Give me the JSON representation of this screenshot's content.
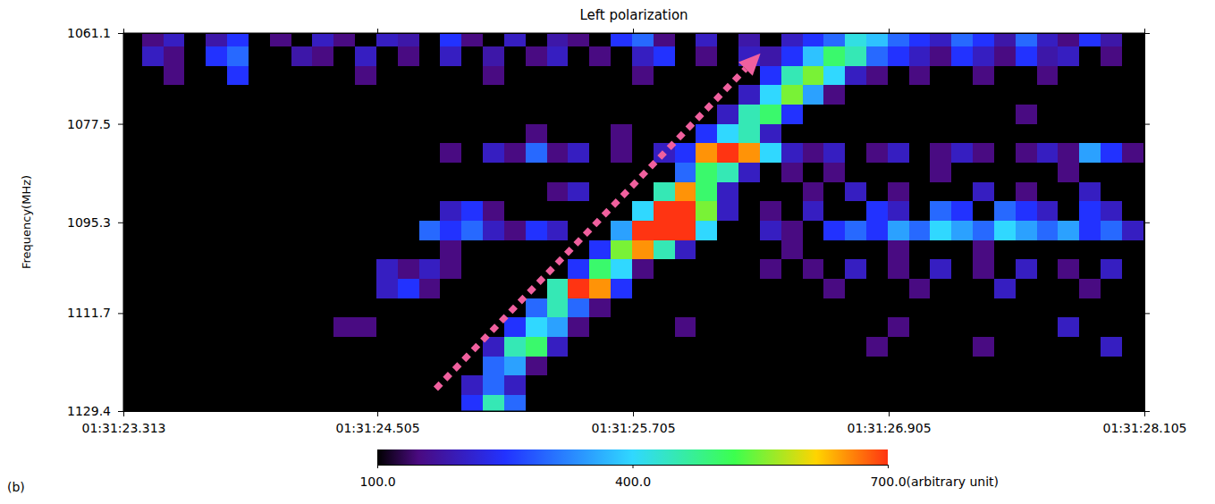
{
  "chart_data": {
    "type": "heatmap",
    "title": "Left polarization",
    "y_label": "Frequency(MHz)",
    "panel_label": "(b)",
    "xlim": [
      23.313,
      28.105
    ],
    "xticks": [
      {
        "value": 23.313,
        "label": "01:31:23.313"
      },
      {
        "value": 24.505,
        "label": "01:31:24.505"
      },
      {
        "value": 25.705,
        "label": "01:31:25.705"
      },
      {
        "value": 26.905,
        "label": "01:31:26.905"
      },
      {
        "value": 28.105,
        "label": "01:31:28.105"
      }
    ],
    "ylim": [
      1129.4,
      1061.1
    ],
    "yticks": [
      1061.1,
      1077.5,
      1095.3,
      1111.7,
      1129.4
    ],
    "x_edges": [
      23.3,
      23.4,
      23.5,
      23.6,
      23.7,
      23.8,
      23.9,
      24.0,
      24.1,
      24.2,
      24.3,
      24.4,
      24.5,
      24.6,
      24.7,
      24.8,
      24.9,
      25.0,
      25.1,
      25.2,
      25.3,
      25.4,
      25.5,
      25.6,
      25.7,
      25.8,
      25.9,
      26.0,
      26.1,
      26.2,
      26.3,
      26.4,
      26.5,
      26.6,
      26.7,
      26.8,
      26.9,
      27.0,
      27.1,
      27.2,
      27.3,
      27.4,
      27.5,
      27.6,
      27.7,
      27.8,
      27.9,
      28.0,
      28.1
    ],
    "y_edges": [
      1060,
      1063.5,
      1067,
      1070.5,
      1074,
      1077.5,
      1081,
      1084.5,
      1088,
      1091.5,
      1095,
      1098.5,
      1102,
      1105.5,
      1109,
      1112.5,
      1116,
      1119.5,
      1123,
      1126.5,
      1130
    ],
    "z": [
      [
        0,
        150,
        200,
        0,
        180,
        250,
        0,
        150,
        0,
        200,
        150,
        0,
        200,
        180,
        0,
        250,
        150,
        0,
        200,
        0,
        180,
        150,
        0,
        250,
        300,
        150,
        0,
        200,
        0,
        180,
        0,
        200,
        250,
        300,
        420,
        380,
        300,
        250,
        200,
        300,
        250,
        180,
        300,
        200,
        150,
        250,
        180,
        0
      ],
      [
        0,
        200,
        150,
        0,
        250,
        300,
        0,
        0,
        180,
        150,
        0,
        200,
        0,
        150,
        0,
        200,
        0,
        180,
        0,
        150,
        200,
        0,
        150,
        0,
        200,
        250,
        0,
        150,
        0,
        200,
        180,
        250,
        380,
        500,
        450,
        300,
        250,
        200,
        150,
        250,
        200,
        150,
        250,
        180,
        200,
        0,
        150,
        0
      ],
      [
        0,
        0,
        150,
        0,
        0,
        250,
        0,
        0,
        0,
        0,
        0,
        150,
        0,
        0,
        0,
        0,
        0,
        150,
        0,
        0,
        0,
        0,
        0,
        0,
        150,
        0,
        0,
        0,
        0,
        0,
        250,
        450,
        550,
        400,
        200,
        150,
        0,
        150,
        0,
        0,
        150,
        0,
        0,
        150,
        0,
        0,
        0,
        0
      ],
      [
        0,
        0,
        0,
        0,
        0,
        0,
        0,
        0,
        0,
        0,
        0,
        0,
        0,
        0,
        0,
        0,
        0,
        0,
        0,
        0,
        0,
        0,
        0,
        0,
        0,
        0,
        0,
        0,
        0,
        200,
        400,
        550,
        350,
        150,
        0,
        0,
        0,
        0,
        0,
        0,
        0,
        0,
        0,
        0,
        0,
        0,
        0,
        0
      ],
      [
        0,
        0,
        0,
        0,
        0,
        0,
        0,
        0,
        0,
        0,
        0,
        0,
        0,
        0,
        0,
        0,
        0,
        0,
        0,
        0,
        0,
        0,
        0,
        0,
        0,
        0,
        0,
        0,
        200,
        450,
        500,
        250,
        0,
        0,
        0,
        0,
        0,
        0,
        0,
        0,
        0,
        0,
        150,
        0,
        0,
        0,
        0,
        0
      ],
      [
        0,
        0,
        0,
        0,
        0,
        0,
        0,
        0,
        0,
        0,
        0,
        0,
        0,
        0,
        0,
        0,
        0,
        0,
        0,
        150,
        0,
        0,
        0,
        150,
        0,
        0,
        0,
        250,
        400,
        450,
        200,
        0,
        0,
        0,
        0,
        0,
        0,
        0,
        0,
        0,
        0,
        0,
        0,
        0,
        0,
        0,
        0,
        0
      ],
      [
        0,
        0,
        0,
        0,
        0,
        0,
        0,
        0,
        0,
        0,
        0,
        0,
        0,
        0,
        0,
        150,
        0,
        200,
        150,
        300,
        150,
        200,
        0,
        150,
        0,
        200,
        250,
        650,
        700,
        650,
        400,
        200,
        150,
        200,
        0,
        150,
        200,
        0,
        150,
        200,
        150,
        0,
        150,
        200,
        150,
        350,
        250,
        150
      ],
      [
        0,
        0,
        0,
        0,
        0,
        0,
        0,
        0,
        0,
        0,
        0,
        0,
        0,
        0,
        0,
        0,
        0,
        0,
        0,
        0,
        0,
        0,
        0,
        0,
        0,
        0,
        300,
        500,
        450,
        200,
        0,
        150,
        0,
        150,
        0,
        0,
        0,
        0,
        150,
        0,
        0,
        0,
        0,
        0,
        150,
        0,
        0,
        0
      ],
      [
        0,
        0,
        0,
        0,
        0,
        0,
        0,
        0,
        0,
        0,
        0,
        0,
        0,
        0,
        0,
        0,
        0,
        0,
        0,
        0,
        150,
        200,
        0,
        0,
        0,
        450,
        650,
        500,
        200,
        0,
        0,
        0,
        150,
        0,
        200,
        0,
        150,
        0,
        0,
        0,
        200,
        0,
        150,
        0,
        0,
        200,
        0,
        0
      ],
      [
        0,
        0,
        0,
        0,
        0,
        0,
        0,
        0,
        0,
        0,
        0,
        0,
        0,
        0,
        0,
        200,
        250,
        150,
        0,
        0,
        0,
        0,
        0,
        0,
        400,
        700,
        700,
        550,
        200,
        0,
        150,
        0,
        200,
        0,
        0,
        250,
        200,
        0,
        300,
        250,
        0,
        300,
        250,
        200,
        0,
        250,
        200,
        0
      ],
      [
        0,
        0,
        0,
        0,
        0,
        0,
        0,
        0,
        0,
        0,
        0,
        0,
        0,
        0,
        300,
        250,
        300,
        200,
        150,
        250,
        200,
        0,
        0,
        350,
        700,
        700,
        700,
        400,
        0,
        0,
        200,
        150,
        0,
        250,
        300,
        250,
        350,
        300,
        400,
        350,
        300,
        400,
        350,
        300,
        350,
        250,
        300,
        200
      ],
      [
        0,
        0,
        0,
        0,
        0,
        0,
        0,
        0,
        0,
        0,
        0,
        0,
        0,
        0,
        0,
        150,
        0,
        0,
        0,
        0,
        0,
        0,
        250,
        550,
        650,
        450,
        200,
        0,
        0,
        0,
        0,
        150,
        0,
        0,
        0,
        0,
        150,
        0,
        0,
        0,
        150,
        0,
        0,
        0,
        0,
        0,
        0,
        0
      ],
      [
        0,
        0,
        0,
        0,
        0,
        0,
        0,
        0,
        0,
        0,
        0,
        0,
        200,
        150,
        200,
        150,
        0,
        0,
        0,
        0,
        0,
        250,
        500,
        400,
        150,
        0,
        0,
        0,
        0,
        0,
        150,
        0,
        150,
        0,
        200,
        0,
        150,
        0,
        200,
        0,
        150,
        0,
        200,
        0,
        150,
        0,
        200,
        0
      ],
      [
        0,
        0,
        0,
        0,
        0,
        0,
        0,
        0,
        0,
        0,
        0,
        0,
        200,
        250,
        150,
        0,
        0,
        0,
        0,
        0,
        450,
        700,
        650,
        250,
        0,
        0,
        0,
        0,
        0,
        0,
        0,
        0,
        0,
        150,
        0,
        0,
        0,
        150,
        0,
        0,
        0,
        200,
        0,
        0,
        0,
        150,
        0,
        0
      ],
      [
        0,
        0,
        0,
        0,
        0,
        0,
        0,
        0,
        0,
        0,
        0,
        0,
        0,
        0,
        0,
        0,
        0,
        0,
        0,
        300,
        450,
        300,
        150,
        0,
        0,
        0,
        0,
        0,
        0,
        0,
        0,
        0,
        0,
        0,
        0,
        0,
        0,
        0,
        0,
        0,
        0,
        0,
        0,
        0,
        0,
        0,
        0,
        0
      ],
      [
        0,
        0,
        0,
        0,
        0,
        0,
        0,
        0,
        0,
        0,
        150,
        150,
        0,
        0,
        0,
        0,
        0,
        0,
        250,
        400,
        350,
        150,
        0,
        0,
        0,
        0,
        150,
        0,
        0,
        0,
        0,
        0,
        0,
        0,
        0,
        0,
        150,
        0,
        0,
        0,
        0,
        0,
        0,
        0,
        200,
        0,
        0,
        0
      ],
      [
        0,
        0,
        0,
        0,
        0,
        0,
        0,
        0,
        0,
        0,
        0,
        0,
        0,
        0,
        0,
        0,
        0,
        200,
        450,
        500,
        200,
        0,
        0,
        0,
        0,
        0,
        0,
        0,
        0,
        0,
        0,
        0,
        0,
        0,
        0,
        150,
        0,
        0,
        0,
        0,
        150,
        0,
        0,
        0,
        0,
        0,
        200,
        0
      ],
      [
        0,
        0,
        0,
        0,
        0,
        0,
        0,
        0,
        0,
        0,
        0,
        0,
        0,
        0,
        0,
        0,
        0,
        300,
        350,
        150,
        0,
        0,
        0,
        0,
        0,
        0,
        0,
        0,
        0,
        0,
        0,
        0,
        0,
        0,
        0,
        0,
        0,
        0,
        0,
        0,
        0,
        0,
        0,
        0,
        0,
        0,
        0,
        0
      ],
      [
        0,
        0,
        0,
        0,
        0,
        0,
        0,
        0,
        0,
        0,
        0,
        0,
        0,
        0,
        0,
        0,
        200,
        300,
        200,
        0,
        0,
        0,
        0,
        0,
        0,
        0,
        0,
        0,
        0,
        0,
        0,
        0,
        0,
        0,
        0,
        0,
        0,
        0,
        0,
        0,
        0,
        0,
        0,
        0,
        0,
        0,
        0,
        0
      ],
      [
        0,
        0,
        0,
        0,
        0,
        0,
        0,
        0,
        0,
        0,
        0,
        0,
        0,
        0,
        0,
        0,
        250,
        450,
        300,
        0,
        0,
        0,
        0,
        0,
        0,
        0,
        0,
        0,
        0,
        0,
        0,
        0,
        0,
        0,
        0,
        0,
        0,
        0,
        0,
        0,
        0,
        0,
        0,
        0,
        0,
        0,
        0,
        0
      ]
    ],
    "colorbar": {
      "lim": [
        100,
        700
      ],
      "ticks": [
        {
          "value": 100,
          "label": "100.0"
        },
        {
          "value": 400,
          "label": "400.0"
        },
        {
          "value": 700,
          "label": "700.0(arbitrary unit)"
        }
      ]
    }
  }
}
